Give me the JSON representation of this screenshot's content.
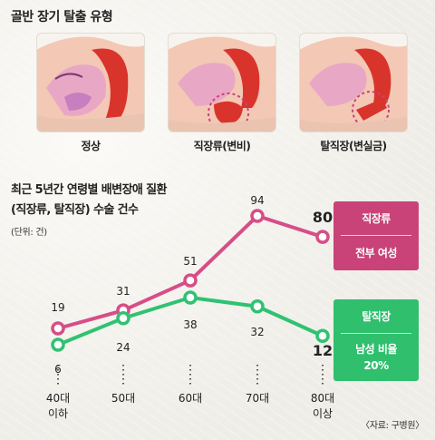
{
  "header": {
    "title": "골반 장기 탈출 유형"
  },
  "panels": [
    {
      "label": "정상"
    },
    {
      "label": "직장류(변비)"
    },
    {
      "label": "탈직장(변실금)"
    }
  ],
  "chart_heading": {
    "line1": "최근 5년간 연령별 배변장애 질환",
    "line2": "(직장류, 탈직장) 수술 건수",
    "unit": "(단위: 건)"
  },
  "legend": {
    "rectocele": {
      "title": "직장류",
      "note": "전부 여성"
    },
    "prolapse": {
      "title": "탈직장",
      "note1": "남성 비율",
      "note2": "20%"
    }
  },
  "source": "〈자료: 구병원〉",
  "colors": {
    "rectocele": "#d64e87",
    "prolapse": "#2fc272",
    "rectocele_box": "#c94379",
    "prolapse_box": "#2fbf6d"
  },
  "chart_data": {
    "type": "line",
    "categories": [
      "40대\n이하",
      "50대",
      "60대",
      "70대",
      "80대\n이상"
    ],
    "series": [
      {
        "name": "직장류",
        "values": [
          19,
          31,
          51,
          94,
          80
        ]
      },
      {
        "name": "탈직장",
        "values": [
          6,
          24,
          38,
          32,
          12
        ]
      }
    ]
  }
}
